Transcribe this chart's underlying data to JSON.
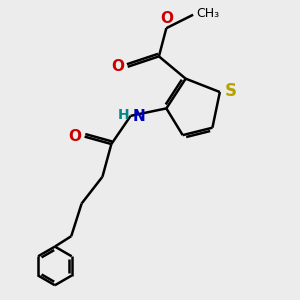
{
  "background_color": "#ececec",
  "bond_color": "#000000",
  "S_color": "#b8a000",
  "O_color": "#cc0000",
  "N_color": "#0000bb",
  "H_color": "#008888",
  "line_width": 1.8,
  "figsize": [
    3.0,
    3.0
  ],
  "dpi": 100,
  "xlim": [
    0,
    10
  ],
  "ylim": [
    0,
    10
  ]
}
